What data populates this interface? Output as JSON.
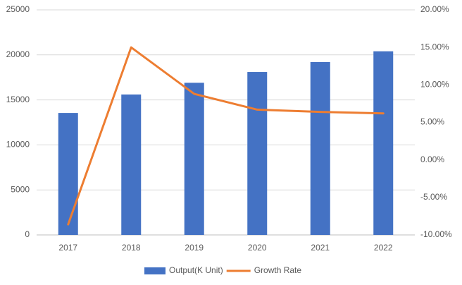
{
  "chart_data": {
    "type": "bar-line",
    "categories": [
      "2017",
      "2018",
      "2019",
      "2020",
      "2021",
      "2022"
    ],
    "series": [
      {
        "name": "Output(K Unit)",
        "type": "bar",
        "color": "#4472c4",
        "values": [
          13550,
          15600,
          16900,
          18100,
          19200,
          20400
        ]
      },
      {
        "name": "Growth Rate",
        "type": "line",
        "axis": "y2",
        "color": "#ed7d31",
        "values": [
          -8.6,
          15.0,
          8.8,
          6.7,
          6.4,
          6.2
        ]
      }
    ],
    "ylim": [
      0,
      25000
    ],
    "yticks": [
      0,
      5000,
      10000,
      15000,
      20000,
      25000
    ],
    "y2lim": [
      -10,
      20
    ],
    "y2ticks": [
      {
        "value": -10,
        "label": "-10.00%"
      },
      {
        "value": -5,
        "label": "-5.00%"
      },
      {
        "value": 0,
        "label": "0.00%"
      },
      {
        "value": 5,
        "label": "5.00%"
      },
      {
        "value": 10,
        "label": "10.00%"
      },
      {
        "value": 15,
        "label": "15.00%"
      },
      {
        "value": 20,
        "label": "20.00%"
      }
    ],
    "grid": true,
    "legend": "bottom"
  }
}
